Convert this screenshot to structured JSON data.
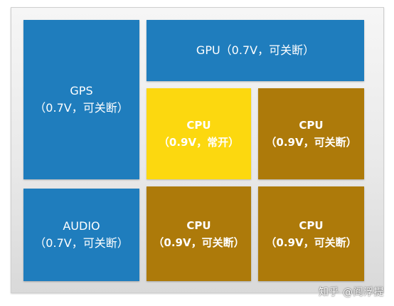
{
  "blocks": {
    "gps": {
      "name": "GPS",
      "detail": "（0.7V，可关断）",
      "color": "#1f7dbd"
    },
    "gpu": {
      "label": "GPU（0.7V，可关断）",
      "color": "#1f7dbd"
    },
    "audio": {
      "name": "AUDIO",
      "detail": "（0.7V，可关断）",
      "color": "#1f7dbd"
    },
    "cpu_always_on": {
      "name": "CPU",
      "detail": "（0.9V，常开）",
      "color": "#fcd80f"
    },
    "cpu_top_right": {
      "name": "CPU",
      "detail": "（0.9V，可关断）",
      "color": "#ad7a0a"
    },
    "cpu_bottom_mid": {
      "name": "CPU",
      "detail": "（0.9V，可关断）",
      "color": "#ad7a0a"
    },
    "cpu_bottom_right": {
      "name": "CPU",
      "detail": "（0.9V，可关断）",
      "color": "#ad7a0a"
    }
  },
  "watermark": "知乎 @阎浮提"
}
